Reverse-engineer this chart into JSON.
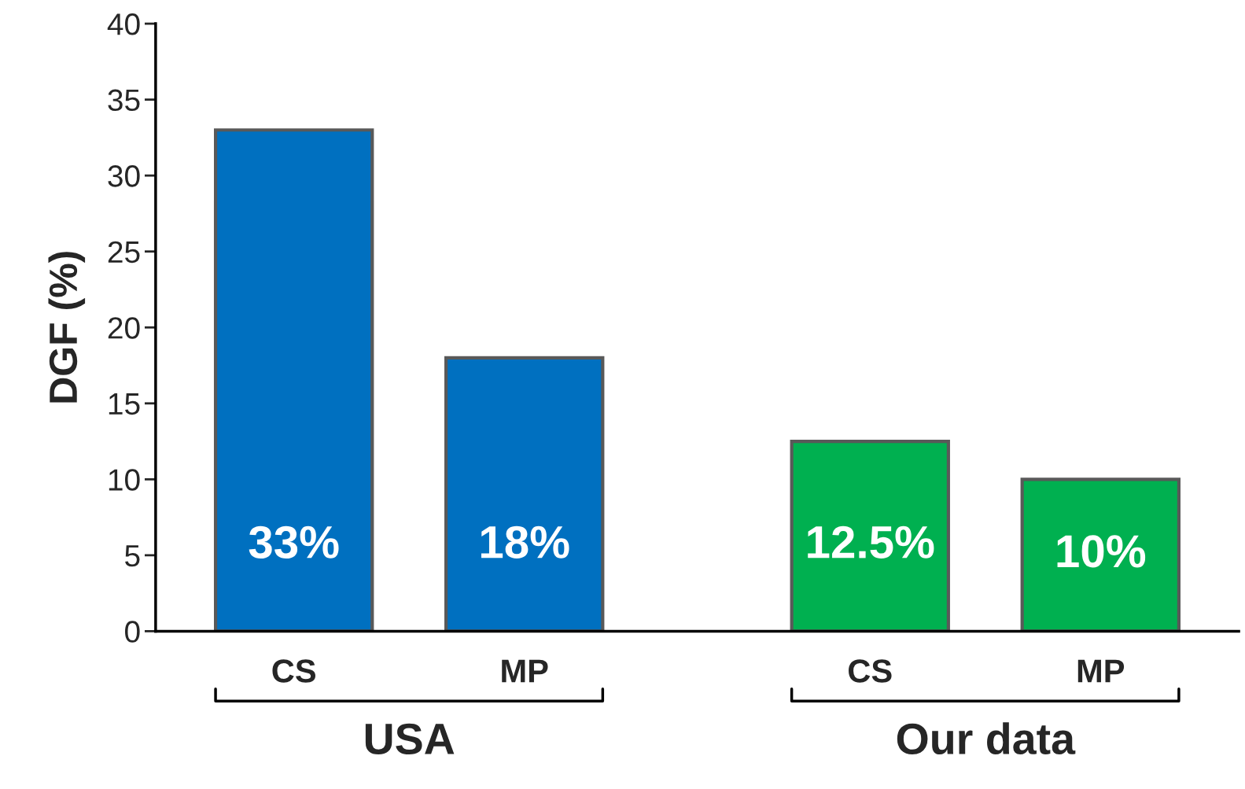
{
  "chart_data": {
    "type": "bar",
    "ylabel": "DGF (%)",
    "categories": [
      "CS",
      "MP",
      "CS",
      "MP"
    ],
    "values": [
      33,
      18,
      12.5,
      10
    ],
    "value_labels": [
      "33%",
      "18%",
      "12.5%",
      "10%"
    ],
    "colors": [
      "#0070c0",
      "#0070c0",
      "#00b050",
      "#00b050"
    ],
    "ylim": [
      0,
      40
    ],
    "yticks": [
      0,
      5,
      10,
      15,
      20,
      25,
      30,
      35,
      40
    ],
    "annotations": [
      "USA",
      "Our data"
    ],
    "grid": false,
    "legend": false
  }
}
